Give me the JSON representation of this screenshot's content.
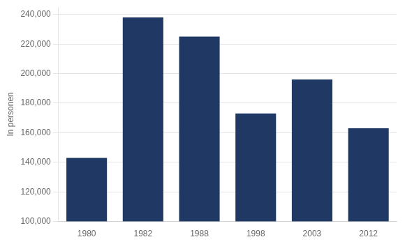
{
  "chart_data": {
    "type": "bar",
    "categories": [
      "1980",
      "1982",
      "1988",
      "1998",
      "2003",
      "2012"
    ],
    "values": [
      143000,
      238000,
      225000,
      173000,
      196000,
      163000
    ],
    "color": "#1F3864",
    "ylabel": "In personen",
    "ylim": [
      100000,
      245000
    ],
    "yticks": [
      {
        "value": 100000,
        "label": "100,000"
      },
      {
        "value": 120000,
        "label": "120,000"
      },
      {
        "value": 140000,
        "label": "140,000"
      },
      {
        "value": 160000,
        "label": "160,000"
      },
      {
        "value": 180000,
        "label": "180,000"
      },
      {
        "value": 200000,
        "label": "200,000"
      },
      {
        "value": 220000,
        "label": "220,000"
      },
      {
        "value": 240000,
        "label": "240,000"
      }
    ],
    "grid": true
  }
}
